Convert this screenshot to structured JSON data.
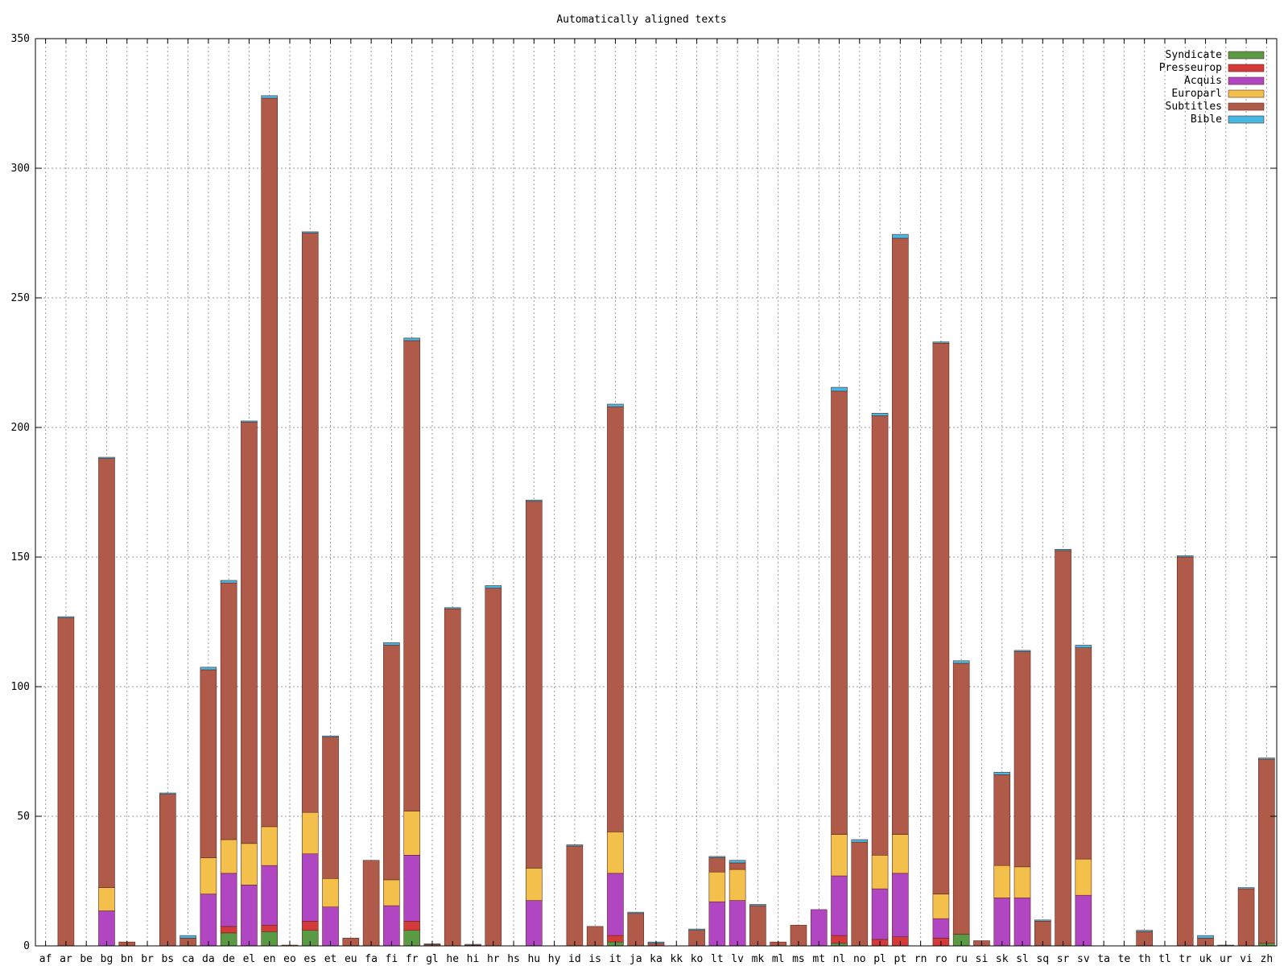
{
  "chart_data": {
    "type": "bar",
    "stacked": true,
    "title": "Automatically aligned texts",
    "xlabel": "",
    "ylabel": "",
    "ylim": [
      0,
      350
    ],
    "yticks": [
      0,
      50,
      100,
      150,
      200,
      250,
      300,
      350
    ],
    "grid": true,
    "legend_position": "top-right",
    "categories": [
      "af",
      "ar",
      "be",
      "bg",
      "bn",
      "br",
      "bs",
      "ca",
      "da",
      "de",
      "el",
      "en",
      "eo",
      "es",
      "et",
      "eu",
      "fa",
      "fi",
      "fr",
      "gl",
      "he",
      "hi",
      "hr",
      "hs",
      "hu",
      "hy",
      "id",
      "is",
      "it",
      "ja",
      "ka",
      "kk",
      "ko",
      "lt",
      "lv",
      "mk",
      "ml",
      "ms",
      "mt",
      "nl",
      "no",
      "pl",
      "pt",
      "rn",
      "ro",
      "ru",
      "si",
      "sk",
      "sl",
      "sq",
      "sr",
      "sv",
      "ta",
      "te",
      "th",
      "tl",
      "tr",
      "uk",
      "ur",
      "vi",
      "zh"
    ],
    "series": [
      {
        "name": "Syndicate",
        "color": "#5a9a44",
        "values": [
          0,
          0,
          0,
          0,
          0,
          0,
          0,
          0,
          0,
          5,
          0,
          5.5,
          0,
          6,
          0,
          0,
          0,
          0,
          6,
          0,
          0,
          0,
          0,
          0,
          0,
          0,
          0,
          0,
          1.5,
          0,
          0,
          0,
          0,
          0,
          0,
          0,
          0,
          0,
          0,
          1,
          0,
          0,
          0,
          0,
          0,
          4.5,
          0,
          0,
          0,
          0,
          0,
          0,
          0,
          0,
          0,
          0,
          0,
          0,
          0,
          0,
          1
        ]
      },
      {
        "name": "Presseurop",
        "color": "#d43a3a",
        "values": [
          0,
          0,
          0,
          0,
          0,
          0,
          0,
          0,
          0,
          2.5,
          0,
          2.5,
          0,
          3.5,
          0,
          0,
          0,
          0,
          3.5,
          0,
          0,
          0,
          0,
          0,
          0,
          0,
          0,
          0,
          2.5,
          0,
          0,
          0,
          0,
          0,
          0,
          0,
          0,
          0,
          0,
          3,
          0,
          2.5,
          3.5,
          0,
          3,
          0,
          0,
          0,
          0,
          0,
          0,
          0,
          0,
          0,
          0,
          0,
          0,
          0,
          0,
          0,
          0
        ]
      },
      {
        "name": "Acquis",
        "color": "#b046c1",
        "values": [
          0,
          0,
          0,
          13.5,
          0,
          0,
          0,
          0,
          20,
          20.5,
          23.5,
          23,
          0,
          26,
          15,
          0,
          0,
          15.5,
          25.5,
          0,
          0,
          0,
          0,
          0,
          17.5,
          0,
          0,
          0,
          24,
          0,
          0,
          0,
          0,
          17,
          17.5,
          0,
          0,
          0,
          14,
          23,
          0,
          19.5,
          24.5,
          0,
          7.5,
          0,
          0,
          18.5,
          18.5,
          0,
          0,
          19.5,
          0,
          0,
          0,
          0,
          0,
          0,
          0,
          0,
          0
        ]
      },
      {
        "name": "Europarl",
        "color": "#f4c04c",
        "values": [
          0,
          0,
          0,
          9,
          0,
          0,
          0,
          0,
          14,
          13,
          16,
          15,
          0,
          16,
          11,
          0,
          0,
          10,
          17,
          0,
          0,
          0,
          0,
          0,
          12.5,
          0,
          0,
          0,
          16,
          0,
          0,
          0,
          0,
          11.5,
          12,
          0,
          0,
          0,
          0,
          16,
          0,
          13,
          15,
          0,
          9.5,
          0,
          0,
          12.5,
          12,
          0,
          0,
          14,
          0,
          0,
          0,
          0,
          0,
          0,
          0,
          0,
          0
        ]
      },
      {
        "name": "Subtitles",
        "color": "#b05a4a",
        "values": [
          0,
          126.5,
          0,
          165.5,
          1.5,
          0,
          58.5,
          3,
          72.5,
          99,
          162.5,
          281,
          0.3,
          223.5,
          54.5,
          3,
          33,
          90.5,
          181.5,
          0.5,
          130,
          0.3,
          138,
          0,
          141.5,
          0,
          38.5,
          7.5,
          164,
          12.5,
          1,
          0,
          6,
          5.5,
          2.5,
          15.5,
          1.5,
          8,
          0,
          171,
          40,
          169.5,
          230,
          0,
          212.5,
          104.5,
          2,
          35,
          83,
          9.5,
          152.5,
          81.5,
          0,
          0,
          5.5,
          0,
          150,
          3,
          0,
          22,
          71
        ]
      },
      {
        "name": "Bible",
        "color": "#45b8e4",
        "values": [
          0,
          0.5,
          0,
          0.5,
          0,
          0,
          0.5,
          1,
          1,
          1,
          0.5,
          1,
          0,
          0.5,
          0.5,
          0,
          0,
          1,
          1,
          0.3,
          0.5,
          0.3,
          1,
          0,
          0.5,
          0,
          0.5,
          0,
          1,
          0.5,
          0.5,
          0,
          0.5,
          0.5,
          1,
          0.5,
          0,
          0,
          0,
          1.5,
          1,
          1,
          1.5,
          0,
          0.5,
          1,
          0,
          1,
          0.5,
          0.5,
          0.5,
          1,
          0,
          0,
          0.5,
          0,
          0.5,
          1,
          0.3,
          0.5,
          0.5
        ]
      }
    ]
  }
}
